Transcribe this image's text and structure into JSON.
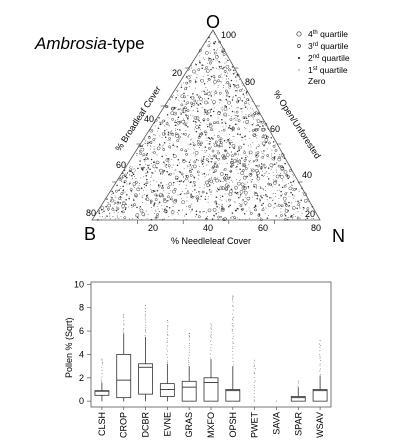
{
  "chart_data": [
    {
      "type": "scatter",
      "subtype": "ternary",
      "title_italic": "Ambrosia",
      "title_rest": "-type",
      "corners": {
        "top": "O",
        "left": "B",
        "right": "N"
      },
      "axis_labels": {
        "left": "% Broadleaf Cover",
        "right": "% Open/Unforested",
        "bottom": "% Needleleaf Cover"
      },
      "ticks": {
        "left": [
          "80",
          "60",
          "40",
          "20"
        ],
        "right": [
          "100",
          "80",
          "60",
          "40",
          "20"
        ],
        "bottom": [
          "20",
          "40",
          "60",
          "80"
        ]
      },
      "legend": {
        "placement": "top-right",
        "entries": [
          {
            "base": "4",
            "sup": "th",
            "rest": " quartile",
            "symbol": "open-circle"
          },
          {
            "base": "3",
            "sup": "rd",
            "rest": " quartile",
            "symbol": "small-circle"
          },
          {
            "base": "2",
            "sup": "nd",
            "rest": " quartile",
            "symbol": "dot"
          },
          {
            "base": "1",
            "sup": "st",
            "rest": " quartile",
            "symbol": "tiny-dot"
          },
          {
            "base": "Zero",
            "sup": "",
            "rest": "",
            "symbol": "none"
          }
        ]
      },
      "points_description_note": ""
    },
    {
      "type": "box",
      "ylabel": "Pollen % (Sqrt)",
      "ylim": [
        -0.5,
        10.2
      ],
      "yticks": [
        "0",
        "2",
        "4",
        "6",
        "8",
        "10"
      ],
      "categories": [
        "CLSH",
        "CROP",
        "DCBR",
        "EVNE",
        "GRAS",
        "MXFO",
        "OPSH",
        "PWET",
        "SAVA",
        "SPAR",
        "WSAV"
      ],
      "boxes": [
        {
          "q1": 0.5,
          "median": 0.85,
          "q3": 0.9,
          "whisker_low": 0,
          "whisker_high": 1.6,
          "max_outlier": 3.6
        },
        {
          "q1": 0.3,
          "median": 1.8,
          "q3": 4.0,
          "whisker_low": 0,
          "whisker_high": 5.8,
          "max_outlier": 7.4
        },
        {
          "q1": 0.6,
          "median": 2.9,
          "q3": 3.2,
          "whisker_low": 0,
          "whisker_high": 5.5,
          "max_outlier": 8.2
        },
        {
          "q1": 0.4,
          "median": 1.0,
          "q3": 1.5,
          "whisker_low": 0,
          "whisker_high": 3.2,
          "max_outlier": 6.9
        },
        {
          "q1": 0.0,
          "median": 1.2,
          "q3": 1.7,
          "whisker_low": 0,
          "whisker_high": 3.0,
          "max_outlier": 5.8
        },
        {
          "q1": 0.0,
          "median": 1.6,
          "q3": 2.0,
          "whisker_low": 0,
          "whisker_high": 3.6,
          "max_outlier": 6.6
        },
        {
          "q1": 0.0,
          "median": 0.9,
          "q3": 1.0,
          "whisker_low": 0,
          "whisker_high": 3.0,
          "max_outlier": 9.0
        },
        {
          "q1": 0.0,
          "median": 0.0,
          "q3": 0.0,
          "whisker_low": 0,
          "whisker_high": 0.0,
          "max_outlier": 3.5
        },
        {
          "q1": 0.0,
          "median": 0.0,
          "q3": 0.0,
          "whisker_low": 0,
          "whisker_high": 0.0,
          "max_outlier": 0.0
        },
        {
          "q1": 0.0,
          "median": 0.3,
          "q3": 0.4,
          "whisker_low": 0,
          "whisker_high": 1.2,
          "max_outlier": 1.7
        },
        {
          "q1": 0.0,
          "median": 0.9,
          "q3": 1.0,
          "whisker_low": 0,
          "whisker_high": 2.2,
          "max_outlier": 5.2
        }
      ]
    }
  ]
}
